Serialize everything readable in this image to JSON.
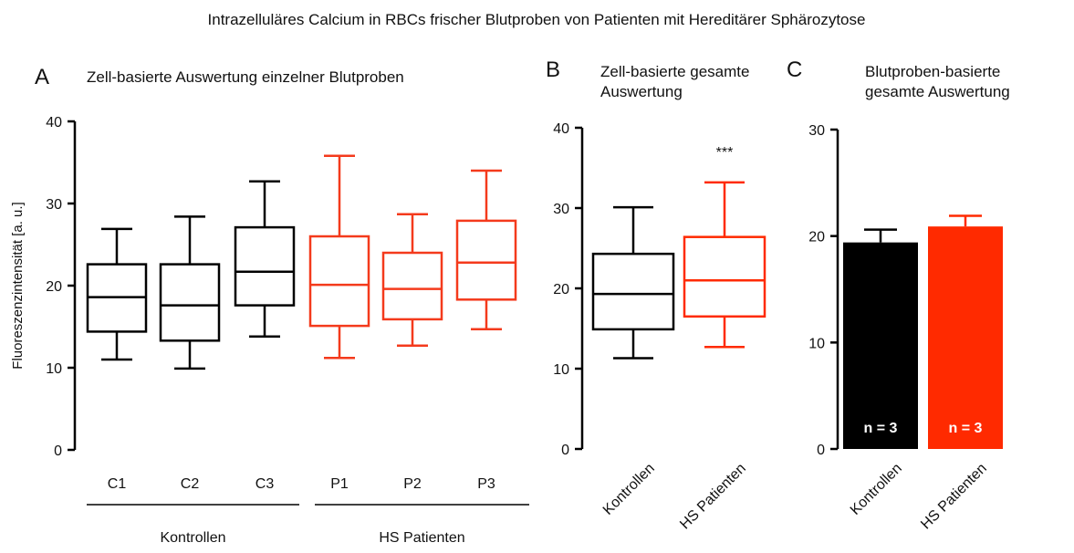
{
  "title": "Intrazelluläres Calcium in RBCs frischer Blutproben von Patienten mit Hereditärer Sphärozytose",
  "chart_data": [
    {
      "type": "box",
      "panel": "A",
      "title": [
        "Zell-basierte Auswertung einzelner Blutproben"
      ],
      "ylabel": "Fluoreszenzintensität [a. u.]",
      "categories": [
        "C1",
        "C2",
        "C3",
        "P1",
        "P2",
        "P3"
      ],
      "colors": [
        "#000000",
        "#000000",
        "#000000",
        "#f43a1c",
        "#f43a1c",
        "#f43a1c"
      ],
      "boxes": [
        {
          "min": 11.0,
          "q1": 14.4,
          "median": 18.6,
          "q3": 22.6,
          "max": 26.9
        },
        {
          "min": 9.9,
          "q1": 13.3,
          "median": 17.6,
          "q3": 22.6,
          "max": 28.4
        },
        {
          "min": 13.8,
          "q1": 17.6,
          "median": 21.7,
          "q3": 27.1,
          "max": 32.7
        },
        {
          "min": 11.2,
          "q1": 15.1,
          "median": 20.1,
          "q3": 26.0,
          "max": 35.8
        },
        {
          "min": 12.7,
          "q1": 15.9,
          "median": 19.6,
          "q3": 24.0,
          "max": 28.7
        },
        {
          "min": 14.7,
          "q1": 18.3,
          "median": 22.8,
          "q3": 27.9,
          "max": 34.0
        }
      ],
      "group_labels": [
        "Kontrollen",
        "HS Patienten"
      ],
      "ylim": [
        0,
        40
      ],
      "yticks": [
        0,
        10,
        20,
        30,
        40
      ]
    },
    {
      "type": "box",
      "panel": "B",
      "title": [
        "Zell-basierte gesamte",
        "Auswertung"
      ],
      "categories": [
        "Kontrollen",
        "HS Patienten"
      ],
      "colors": [
        "#000000",
        "#ff2a00"
      ],
      "boxes": [
        {
          "min": 11.3,
          "q1": 14.9,
          "median": 19.3,
          "q3": 24.3,
          "max": 30.1
        },
        {
          "min": 12.7,
          "q1": 16.5,
          "median": 21.0,
          "q3": 26.4,
          "max": 33.2
        }
      ],
      "annotation": "***",
      "ylim": [
        0,
        40
      ],
      "yticks": [
        0,
        10,
        20,
        30,
        40
      ]
    },
    {
      "type": "bar",
      "panel": "C",
      "title": [
        "Blutproben-basierte",
        "gesamte Auswertung"
      ],
      "categories": [
        "Kontrollen",
        "HS Patienten"
      ],
      "colors": [
        "#000000",
        "#ff2a00"
      ],
      "values": [
        19.4,
        20.9
      ],
      "errors": [
        1.2,
        1.0
      ],
      "annotations": [
        "n = 3",
        "n = 3"
      ],
      "ylim": [
        0,
        30
      ],
      "yticks": [
        0,
        10,
        20,
        30
      ]
    }
  ]
}
